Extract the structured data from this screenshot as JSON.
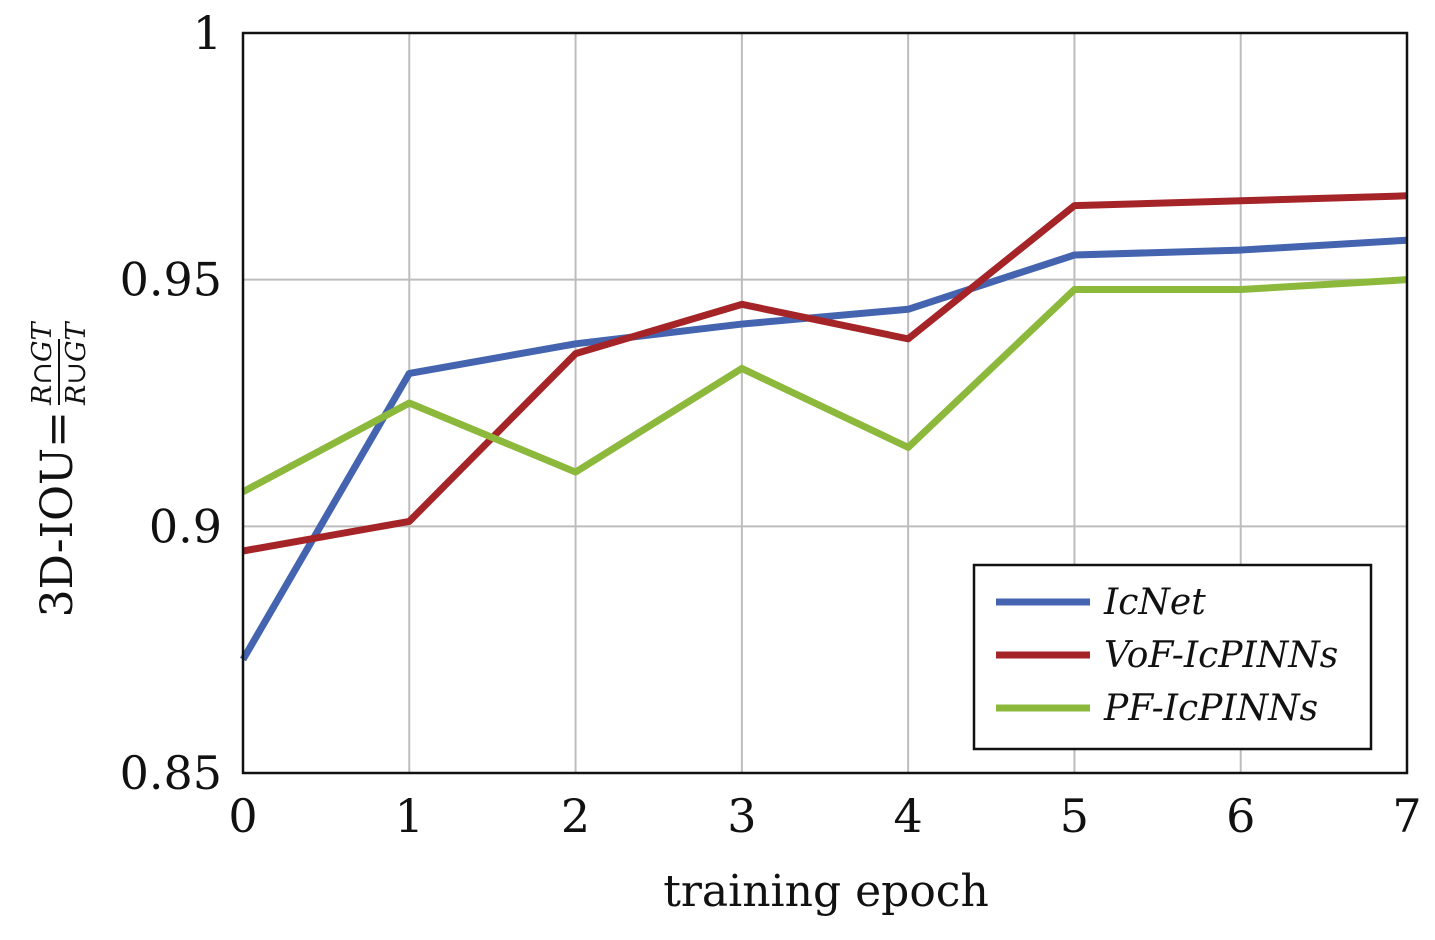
{
  "chart_data": {
    "type": "line",
    "xlabel": "training epoch",
    "ylabel": {
      "prefix": "3D-IOU=",
      "numerator": "R∩GT",
      "denominator": "R∪GT"
    },
    "x": [
      0,
      1,
      2,
      3,
      4,
      5,
      6,
      7
    ],
    "xlim": [
      0,
      7
    ],
    "ylim": [
      0.85,
      1
    ],
    "x_ticks": [
      "0",
      "1",
      "2",
      "3",
      "4",
      "5",
      "6",
      "7"
    ],
    "y_ticks": [
      "0.85",
      "0.9",
      "0.95",
      "1"
    ],
    "y_tick_values": [
      0.85,
      0.9,
      0.95,
      1
    ],
    "grid": true,
    "legend_position": "bottom-right",
    "series": [
      {
        "name": "IcNet",
        "color": "#4464b0",
        "values": [
          0.873,
          0.931,
          0.937,
          0.941,
          0.944,
          0.955,
          0.956,
          0.958
        ]
      },
      {
        "name": "VoF-IcPINNs",
        "color": "#a52428",
        "values": [
          0.895,
          0.901,
          0.935,
          0.945,
          0.938,
          0.965,
          0.966,
          0.967
        ]
      },
      {
        "name": "PF-IcPINNs",
        "color": "#8cb83c",
        "values": [
          0.907,
          0.925,
          0.911,
          0.932,
          0.916,
          0.948,
          0.948,
          0.95
        ]
      }
    ]
  }
}
